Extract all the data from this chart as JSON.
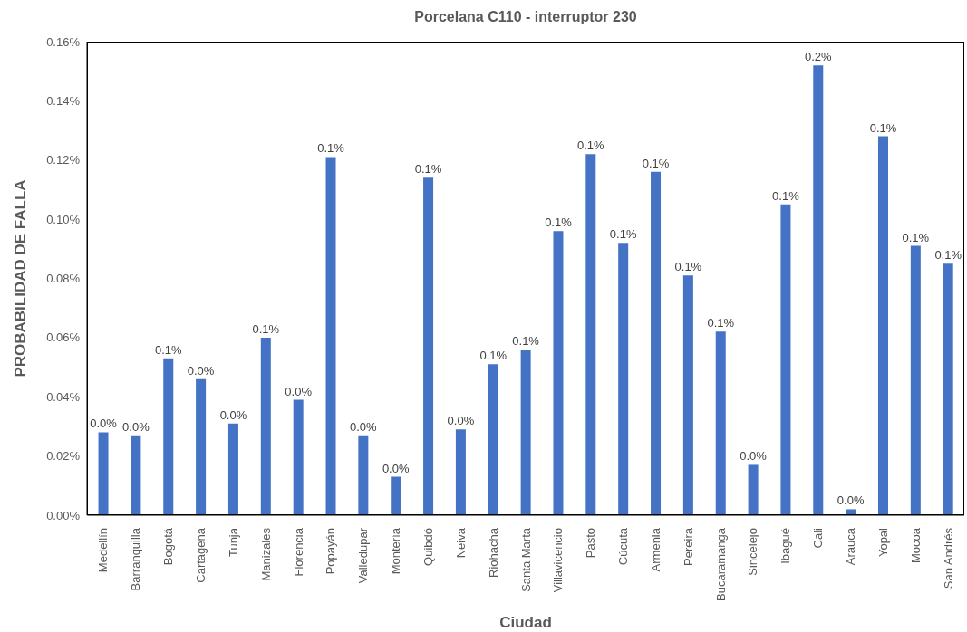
{
  "chart_data": {
    "type": "bar",
    "title": "Porcelana C110 - interruptor 230",
    "xlabel": "Ciudad",
    "ylabel": "PROBABILIDAD DE FALLA",
    "categories": [
      "Medellín",
      "Barranquilla",
      "Bogotá",
      "Cartagena",
      "Tunja",
      "Manizales",
      "Florencia",
      "Popayán",
      "Valledupar",
      "Montería",
      "Quibdó",
      "Neiva",
      "Riohacha",
      "Santa  Marta",
      "Villavicencio",
      "Pasto",
      "Cúcuta",
      "Armenia",
      "Pereira",
      "Bucaramanga",
      "Sincelejo",
      "Ibagué",
      "Cali",
      "Arauca",
      "Yopal",
      "Mocoa",
      "San Andrés"
    ],
    "values": [
      0.028,
      0.027,
      0.053,
      0.046,
      0.031,
      0.06,
      0.039,
      0.121,
      0.027,
      0.013,
      0.114,
      0.029,
      0.051,
      0.056,
      0.096,
      0.122,
      0.092,
      0.116,
      0.081,
      0.062,
      0.017,
      0.105,
      0.152,
      0.002,
      0.128,
      0.091,
      0.085
    ],
    "value_labels": [
      "0.0%",
      "0.0%",
      "0.1%",
      "0.0%",
      "0.0%",
      "0.1%",
      "0.0%",
      "0.1%",
      "0.0%",
      "0.0%",
      "0.1%",
      "0.0%",
      "0.1%",
      "0.1%",
      "0.1%",
      "0.1%",
      "0.1%",
      "0.1%",
      "0.1%",
      "0.1%",
      "0.0%",
      "0.1%",
      "0.2%",
      "0.0%",
      "0.1%",
      "0.1%",
      "0.1%"
    ],
    "color": "#4472c4",
    "ylim": [
      0,
      0.16
    ],
    "yticks": [
      {
        "value": 0,
        "label": "0.00%"
      },
      {
        "value": 0.02,
        "label": "0.02%"
      },
      {
        "value": 0.04,
        "label": "0.04%"
      },
      {
        "value": 0.06,
        "label": "0.06%"
      },
      {
        "value": 0.08,
        "label": "0.08%"
      },
      {
        "value": 0.1,
        "label": "0.10%"
      },
      {
        "value": 0.12,
        "label": "0.12%"
      },
      {
        "value": 0.14,
        "label": "0.14%"
      },
      {
        "value": 0.16,
        "label": "0.16%"
      }
    ],
    "grid": false,
    "legend": false
  }
}
